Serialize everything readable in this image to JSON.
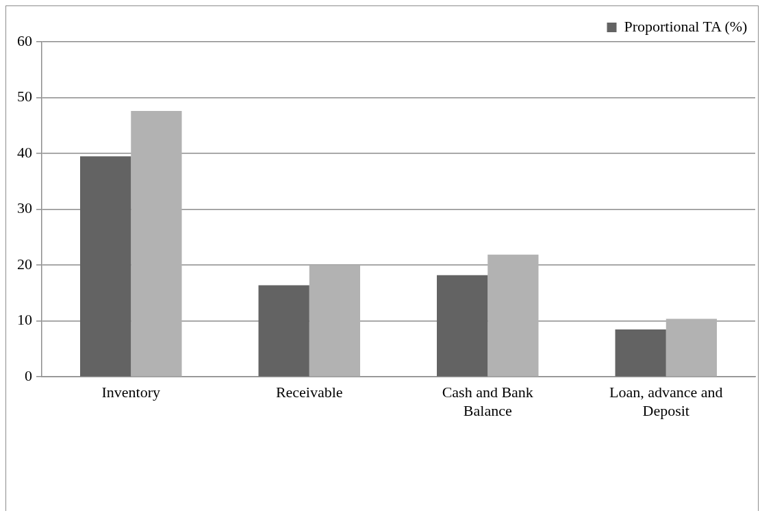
{
  "chart_data": {
    "type": "bar",
    "categories": [
      "Inventory",
      "Receivable",
      "Cash and Bank Balance",
      "Loan, advance and Deposit"
    ],
    "series": [
      {
        "name": "Proportional TA (%)",
        "color": "#636363",
        "values": [
          39.5,
          16.4,
          18.2,
          8.5
        ]
      },
      {
        "color": "#b2b2b2",
        "values": [
          47.6,
          20.0,
          21.9,
          10.4
        ]
      }
    ],
    "ylim": [
      0,
      60
    ],
    "yticks": [
      0,
      10,
      20,
      30,
      40,
      50,
      60
    ],
    "grid": "y",
    "legend": "top right"
  }
}
